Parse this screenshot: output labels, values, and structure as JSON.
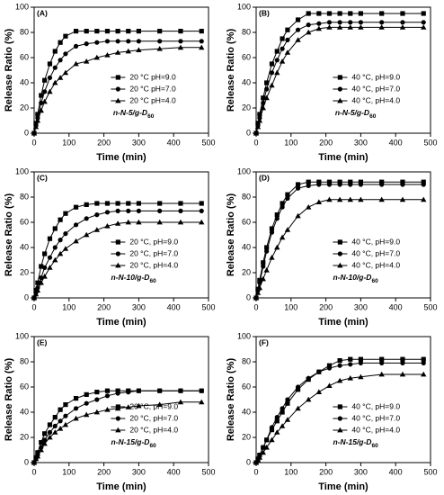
{
  "chart_data": [
    {
      "type": "line",
      "panel_label": "(A)",
      "annotation": "n-N-5/g-D",
      "annotation_sub": "60",
      "xlabel": "Time (min)",
      "ylabel": "Release Ratio (%)",
      "xlim": [
        0,
        500
      ],
      "xticks": [
        0,
        100,
        200,
        300,
        400,
        500
      ],
      "ylim": [
        0,
        100
      ],
      "yticks": [
        0,
        20,
        40,
        60,
        80,
        100
      ],
      "legend": "lower right",
      "x": [
        0,
        5,
        10,
        20,
        30,
        45,
        60,
        75,
        90,
        120,
        150,
        180,
        210,
        240,
        270,
        300,
        360,
        420,
        480
      ],
      "series": [
        {
          "name": "20 °C pH=9.0",
          "color": "#000000",
          "marker": "square",
          "values": [
            0,
            8,
            15,
            30,
            42,
            55,
            65,
            72,
            77,
            81,
            81,
            81,
            81,
            81,
            81,
            81,
            81,
            81,
            81
          ]
        },
        {
          "name": "20 °C pH=7.0",
          "color": "#000000",
          "marker": "circle",
          "values": [
            0,
            6,
            12,
            24,
            33,
            44,
            52,
            58,
            63,
            69,
            71,
            72,
            73,
            73,
            73,
            73,
            73,
            73,
            73
          ]
        },
        {
          "name": "20 °C pH=4.0",
          "color": "#000000",
          "marker": "triangle",
          "values": [
            0,
            5,
            10,
            18,
            25,
            33,
            40,
            44,
            48,
            55,
            57,
            60,
            62,
            64,
            65,
            66,
            67,
            68,
            68
          ]
        }
      ]
    },
    {
      "type": "line",
      "panel_label": "(B)",
      "annotation": "n-N-5/g-D",
      "annotation_sub": "60",
      "xlabel": "Time (min)",
      "ylabel": "Release Ratio (%)",
      "xlim": [
        0,
        500
      ],
      "xticks": [
        0,
        100,
        200,
        300,
        400,
        500
      ],
      "ylim": [
        0,
        100
      ],
      "yticks": [
        0,
        20,
        40,
        60,
        80,
        100
      ],
      "legend": "lower right",
      "x": [
        0,
        5,
        10,
        20,
        30,
        45,
        60,
        75,
        90,
        120,
        150,
        180,
        210,
        240,
        270,
        300,
        360,
        420,
        480
      ],
      "series": [
        {
          "name": "40 °C, pH=9.0",
          "color": "#000000",
          "marker": "square",
          "values": [
            0,
            8,
            15,
            28,
            40,
            55,
            65,
            75,
            82,
            90,
            95,
            95,
            95,
            95,
            95,
            95,
            95,
            95,
            95
          ]
        },
        {
          "name": "40 °C, pH=7.0",
          "color": "#000000",
          "marker": "circle",
          "values": [
            0,
            6,
            12,
            24,
            35,
            48,
            58,
            67,
            74,
            82,
            86,
            87,
            88,
            88,
            88,
            88,
            88,
            88,
            88
          ]
        },
        {
          "name": "40 °C, pH=4.0",
          "color": "#000000",
          "marker": "triangle",
          "values": [
            0,
            5,
            10,
            20,
            28,
            38,
            48,
            57,
            64,
            74,
            80,
            83,
            84,
            84,
            84,
            84,
            84,
            84,
            84
          ]
        }
      ]
    },
    {
      "type": "line",
      "panel_label": "(C)",
      "annotation": "n-N-10/g-D",
      "annotation_sub": "60",
      "xlabel": "Time (min)",
      "ylabel": "Release Ratio (%)",
      "xlim": [
        0,
        500
      ],
      "xticks": [
        0,
        100,
        200,
        300,
        400,
        500
      ],
      "ylim": [
        0,
        100
      ],
      "yticks": [
        0,
        20,
        40,
        60,
        80,
        100
      ],
      "legend": "lower right",
      "x": [
        0,
        5,
        10,
        20,
        30,
        45,
        60,
        75,
        90,
        120,
        150,
        180,
        210,
        240,
        270,
        300,
        360,
        420,
        480
      ],
      "series": [
        {
          "name": "20 °C, pH=9.0",
          "color": "#000000",
          "marker": "square",
          "values": [
            0,
            6,
            12,
            25,
            35,
            47,
            55,
            62,
            67,
            72,
            74,
            75,
            75,
            75,
            75,
            75,
            75,
            75,
            75
          ]
        },
        {
          "name": "20 °C, pH=7.0",
          "color": "#000000",
          "marker": "circle",
          "values": [
            0,
            4,
            8,
            16,
            24,
            32,
            40,
            46,
            51,
            58,
            63,
            66,
            68,
            69,
            69,
            69,
            69,
            69,
            69
          ]
        },
        {
          "name": "20 °C, pH=4.0",
          "color": "#000000",
          "marker": "triangle",
          "values": [
            0,
            3,
            6,
            12,
            17,
            24,
            30,
            35,
            39,
            45,
            50,
            54,
            57,
            59,
            60,
            60,
            60,
            60,
            60
          ]
        }
      ]
    },
    {
      "type": "line",
      "panel_label": "(D)",
      "annotation": "n-N-10/g-D",
      "annotation_sub": "60",
      "xlabel": "Time (min)",
      "ylabel": "Release Ratio (%)",
      "xlim": [
        0,
        500
      ],
      "xticks": [
        0,
        100,
        200,
        300,
        400,
        500
      ],
      "ylim": [
        0,
        100
      ],
      "yticks": [
        0,
        20,
        40,
        60,
        80,
        100
      ],
      "legend": "lower right",
      "x": [
        0,
        5,
        10,
        20,
        30,
        45,
        60,
        75,
        90,
        120,
        150,
        180,
        210,
        240,
        270,
        300,
        360,
        420,
        480
      ],
      "series": [
        {
          "name": "40 °C, pH=9.0",
          "color": "#000000",
          "marker": "square",
          "values": [
            0,
            7,
            14,
            28,
            40,
            55,
            66,
            75,
            82,
            90,
            92,
            92,
            92,
            92,
            92,
            92,
            92,
            92,
            92
          ]
        },
        {
          "name": "40 °C, pH=7.0",
          "color": "#000000",
          "marker": "circle",
          "values": [
            0,
            6,
            12,
            25,
            37,
            52,
            63,
            72,
            79,
            87,
            89,
            90,
            90,
            90,
            90,
            90,
            90,
            90,
            90
          ]
        },
        {
          "name": "40 °C, pH=4.0",
          "color": "#000000",
          "marker": "triangle",
          "values": [
            0,
            4,
            8,
            15,
            22,
            32,
            40,
            48,
            54,
            65,
            72,
            76,
            78,
            78,
            78,
            78,
            78,
            78,
            78
          ]
        }
      ]
    },
    {
      "type": "line",
      "panel_label": "(E)",
      "annotation": "n-N-15/g-D",
      "annotation_sub": "60",
      "xlabel": "Time (min)",
      "ylabel": "Release Ratio (%)",
      "xlim": [
        0,
        500
      ],
      "xticks": [
        0,
        100,
        200,
        300,
        400,
        500
      ],
      "ylim": [
        0,
        100
      ],
      "yticks": [
        0,
        20,
        40,
        60,
        80,
        100
      ],
      "legend": "lower right",
      "x": [
        0,
        5,
        10,
        20,
        30,
        45,
        60,
        75,
        90,
        120,
        150,
        180,
        210,
        240,
        270,
        300,
        360,
        420,
        480
      ],
      "series": [
        {
          "name": "20 °C, pH=9.0",
          "color": "#000000",
          "marker": "square",
          "values": [
            0,
            4,
            8,
            16,
            23,
            30,
            36,
            42,
            46,
            51,
            54,
            56,
            57,
            57,
            57,
            57,
            57,
            57,
            57
          ]
        },
        {
          "name": "20 °C, pH=7.0",
          "color": "#000000",
          "marker": "circle",
          "values": [
            0,
            3,
            6,
            12,
            18,
            24,
            29,
            33,
            37,
            43,
            47,
            50,
            53,
            55,
            56,
            57,
            57,
            57,
            57
          ]
        },
        {
          "name": "20 °C, pH=4.0",
          "color": "#000000",
          "marker": "triangle",
          "values": [
            0,
            3,
            5,
            10,
            15,
            20,
            24,
            27,
            30,
            35,
            38,
            40,
            42,
            43,
            44,
            45,
            46,
            48,
            48
          ]
        }
      ]
    },
    {
      "type": "line",
      "panel_label": "(F)",
      "annotation": "n-N-15/g-D",
      "annotation_sub": "60",
      "xlabel": "Time (min)",
      "ylabel": "Release Ratio (%)",
      "xlim": [
        0,
        500
      ],
      "xticks": [
        0,
        100,
        200,
        300,
        400,
        500
      ],
      "ylim": [
        0,
        100
      ],
      "yticks": [
        0,
        20,
        40,
        60,
        80,
        100
      ],
      "legend": "lower right",
      "x": [
        0,
        5,
        10,
        20,
        30,
        45,
        60,
        75,
        90,
        120,
        150,
        180,
        210,
        240,
        270,
        300,
        360,
        420,
        480
      ],
      "series": [
        {
          "name": "40 °C, pH=9.0",
          "color": "#000000",
          "marker": "square",
          "values": [
            0,
            3,
            6,
            12,
            18,
            26,
            33,
            40,
            47,
            58,
            66,
            72,
            77,
            81,
            82,
            82,
            82,
            82,
            82
          ]
        },
        {
          "name": "40 °C, pH=7.0",
          "color": "#000000",
          "marker": "circle",
          "values": [
            0,
            3,
            6,
            12,
            18,
            28,
            36,
            43,
            50,
            60,
            67,
            72,
            75,
            77,
            78,
            79,
            79,
            79,
            79
          ]
        },
        {
          "name": "40 °C, pH=4.0",
          "color": "#000000",
          "marker": "triangle",
          "values": [
            0,
            2,
            4,
            8,
            12,
            18,
            24,
            29,
            34,
            43,
            50,
            56,
            61,
            65,
            67,
            68,
            70,
            70,
            70
          ]
        }
      ]
    }
  ]
}
